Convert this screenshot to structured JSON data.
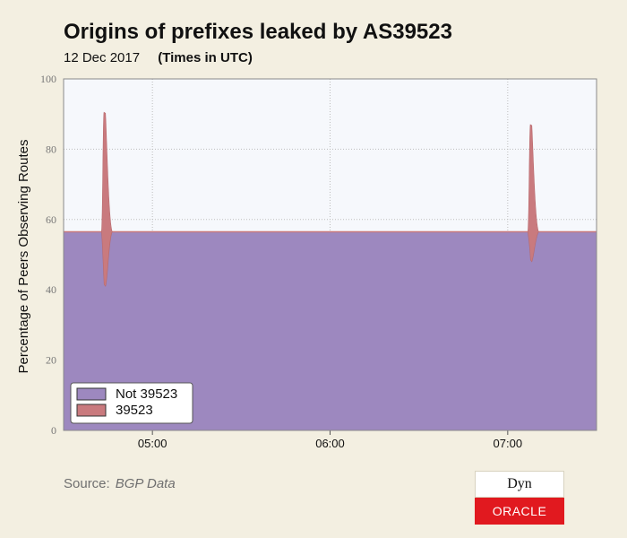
{
  "title": "Origins of prefixes leaked by AS39523",
  "date": "12 Dec 2017",
  "time_note": "(Times in UTC)",
  "source_label": "Source:",
  "source_value": "BGP Data",
  "logo": {
    "dyn": "Dyn",
    "oracle": "ORACLE"
  },
  "colors": {
    "background": "#f3efe1",
    "plot_background": "#f6f8fc",
    "not_39523": "#9d88bf",
    "as_39523": "#c97a7e"
  },
  "chart_data": {
    "type": "area",
    "ylabel": "Percentage of Peers Observing Routes",
    "xlabel": "",
    "ylim": [
      0,
      100
    ],
    "yticks": [
      0,
      20,
      40,
      60,
      80,
      100
    ],
    "xlim": [
      "04:30",
      "07:30"
    ],
    "xticks": [
      "05:00",
      "06:00",
      "07:00"
    ],
    "grid": true,
    "legend_placement": "bottom-left",
    "baseline": 56.5,
    "series": [
      {
        "name": "Not 39523",
        "color": "#9d88bf",
        "stacked_base": true
      },
      {
        "name": "39523",
        "color": "#c97a7e",
        "spikes": [
          {
            "time": "04:44",
            "peak": 90.5,
            "trough": 41
          },
          {
            "time": "07:08",
            "peak": 87,
            "trough": 48
          }
        ]
      }
    ]
  }
}
